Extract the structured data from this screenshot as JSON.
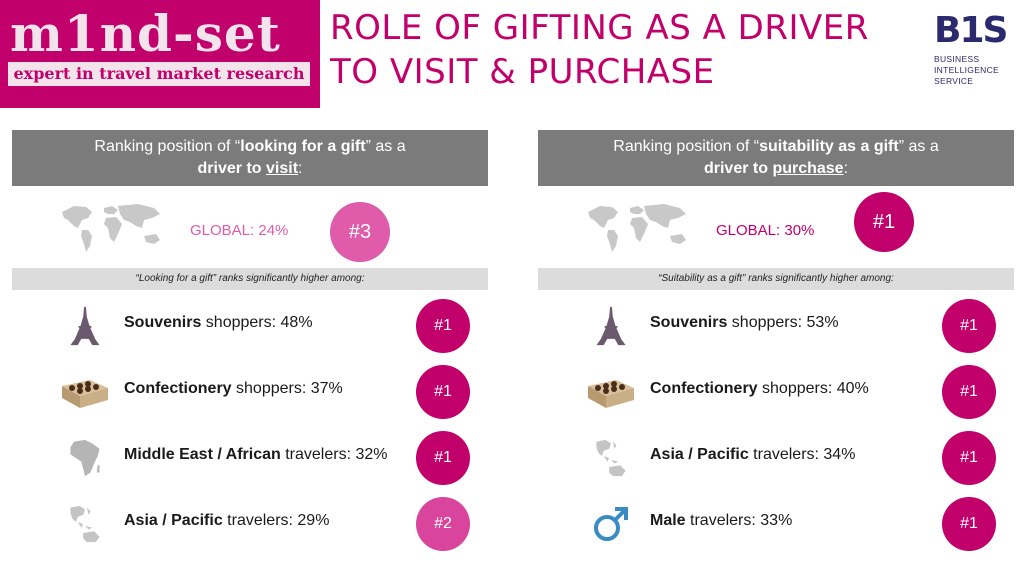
{
  "logo": {
    "word": "m1nd-set",
    "tagline": "expert in travel market research"
  },
  "title": {
    "line1": "ROLE OF GIFTING AS A DRIVER",
    "line2": "TO VISIT & PURCHASE"
  },
  "bis": {
    "mark": "B1S",
    "line1": "BUSINESS",
    "line2": "INTELLIGENCE",
    "line3": "SERVICE"
  },
  "left": {
    "header_pre": "Ranking position of “",
    "header_bold": "looking for a gift",
    "header_mid": "” as a",
    "header_bold2": "driver to ",
    "header_underline": "visit",
    "header_end": ":",
    "global_label": "GLOBAL: 24%",
    "global_rank": "#3",
    "strip": "“Looking for a gift” ranks significantly higher among:",
    "rows": [
      {
        "bold": "Souvenirs",
        "rest": " shoppers: 48%",
        "rank": "#1",
        "icon": "eiffel-tower-icon"
      },
      {
        "bold": "Confectionery",
        "rest": " shoppers: 37%",
        "rank": "#1",
        "icon": "chocolate-box-icon"
      },
      {
        "bold": "Middle East / African",
        "rest": " travelers: 32%",
        "rank": "#1",
        "icon": "africa-map-icon"
      },
      {
        "bold": "Asia / Pacific",
        "rest": " travelers: 29%",
        "rank": "#2",
        "icon": "asia-map-icon"
      }
    ]
  },
  "right": {
    "header_pre": "Ranking position of “",
    "header_bold": "suitability as a gift",
    "header_mid": "” as a",
    "header_bold2": "driver to ",
    "header_underline": "purchase",
    "header_end": ":",
    "global_label": "GLOBAL: 30%",
    "global_rank": "#1",
    "strip": "“Suitability as a gift” ranks significantly higher among:",
    "rows": [
      {
        "bold": "Souvenirs",
        "rest": " shoppers: 53%",
        "rank": "#1",
        "icon": "eiffel-tower-icon"
      },
      {
        "bold": "Confectionery",
        "rest": " shoppers: 40%",
        "rank": "#1",
        "icon": "chocolate-box-icon"
      },
      {
        "bold": "Asia / Pacific",
        "rest": " travelers: 34%",
        "rank": "#1",
        "icon": "asia-map-icon"
      },
      {
        "bold": "Male",
        "rest": " travelers: 33%",
        "rank": "#1",
        "icon": "male-symbol-icon"
      }
    ]
  },
  "colors": {
    "magenta": "#c2006b",
    "pink": "#d9449c",
    "global_pink": "#e05cab",
    "header_gray": "#7b7b7b",
    "strip_gray": "#dcdcdc",
    "navy": "#2c2a6e"
  }
}
